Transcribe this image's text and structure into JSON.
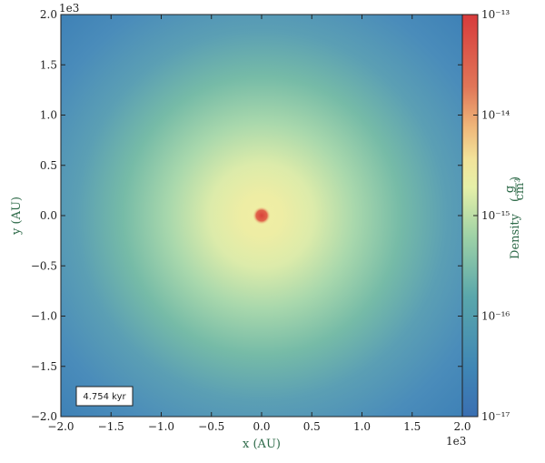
{
  "chart_data": {
    "type": "heatmap",
    "title": "",
    "xlabel": "x  (AU)",
    "ylabel": "y  (AU)",
    "xlim": [
      -2.0,
      2.0
    ],
    "ylim": [
      -2.0,
      2.0
    ],
    "xticks": [
      "−2.0",
      "−1.5",
      "−1.0",
      "−0.5",
      "0.0",
      "0.5",
      "1.0",
      "1.5",
      "2.0"
    ],
    "yticks": [
      "−2.0",
      "−1.5",
      "−1.0",
      "−0.5",
      "0.0",
      "0.5",
      "1.0",
      "1.5",
      "2.0"
    ],
    "x_offset_label": "1e3",
    "y_offset_label": "1e3",
    "colorbar": {
      "label": "Density",
      "unit_numerator": "g",
      "unit_denominator": "cm³",
      "scale": "log",
      "range": [
        1e-17,
        1e-13
      ],
      "ticks": [
        "10⁻¹³",
        "10⁻¹⁴",
        "10⁻¹⁵",
        "10⁻¹⁶",
        "10⁻¹⁷"
      ]
    },
    "annotation": "4.754 kyr"
  },
  "colors": {
    "low": "#3a81b4",
    "mid": "#66b0a6",
    "high": "#e4ec9a",
    "peak": "#d7473a"
  }
}
